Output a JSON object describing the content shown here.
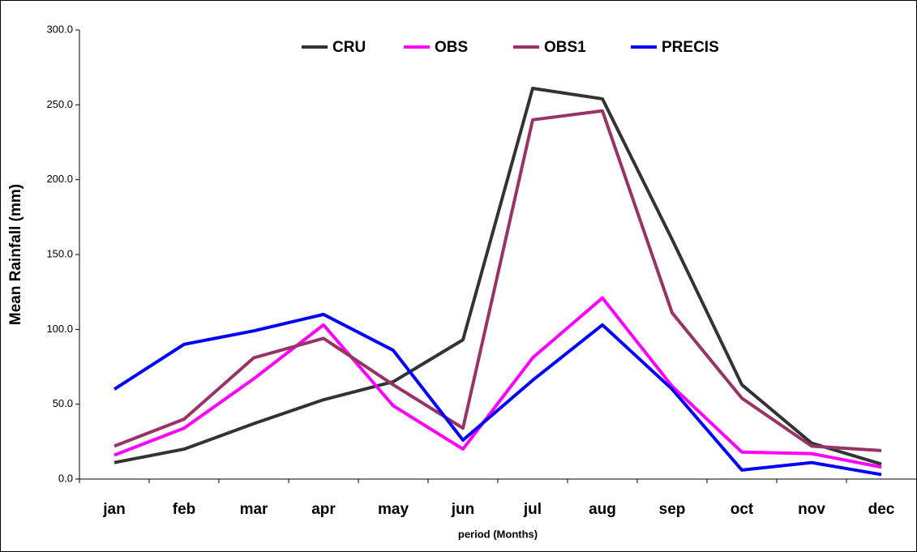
{
  "chart_data": {
    "type": "line",
    "y_label": "Mean Rainfall (mm)",
    "x_label": "period (Months)",
    "categories": [
      "jan",
      "feb",
      "mar",
      "apr",
      "may",
      "jun",
      "jul",
      "aug",
      "sep",
      "oct",
      "nov",
      "dec"
    ],
    "series": [
      {
        "name": "CRU",
        "color": "#333333",
        "values": [
          11,
          20,
          37,
          53,
          65,
          93,
          261,
          254,
          160,
          63,
          24,
          10
        ]
      },
      {
        "name": "OBS",
        "color": "#ff00ff",
        "values": [
          16,
          34,
          67,
          103,
          49,
          20,
          81,
          121,
          62,
          18,
          17,
          8
        ]
      },
      {
        "name": "OBS1",
        "color": "#993366",
        "values": [
          22,
          40,
          81,
          94,
          63,
          34,
          240,
          246,
          111,
          54,
          22,
          19
        ]
      },
      {
        "name": "PRECIS",
        "color": "#0000ff",
        "values": [
          60,
          90,
          99,
          110,
          86,
          26,
          66,
          103,
          60,
          6,
          11,
          3
        ]
      }
    ],
    "ylim": [
      0,
      300
    ],
    "yticks": [
      {
        "value": 0,
        "label": "0.0"
      },
      {
        "value": 50,
        "label": "50.0"
      },
      {
        "value": 100,
        "label": "100.0"
      },
      {
        "value": 150,
        "label": "150.0"
      },
      {
        "value": 200,
        "label": "200.0"
      },
      {
        "value": 250,
        "label": "250.0"
      },
      {
        "value": 300,
        "label": "300.0"
      }
    ],
    "grid": false
  }
}
